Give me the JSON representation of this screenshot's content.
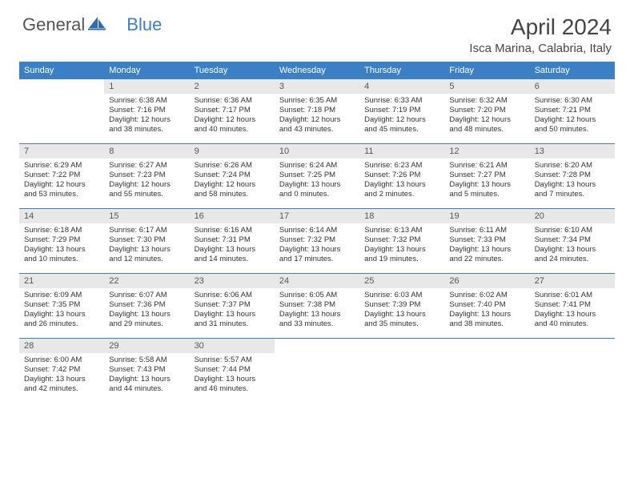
{
  "logo": {
    "general": "General",
    "blue": "Blue"
  },
  "title": "April 2024",
  "location": "Isca Marina, Calabria, Italy",
  "colors": {
    "header_bg": "#3b7fc4",
    "header_text": "#ffffff",
    "daynum_bg": "#e8e8e8",
    "text": "#333333",
    "divider": "#3b7fc4"
  },
  "weekdays": [
    "Sunday",
    "Monday",
    "Tuesday",
    "Wednesday",
    "Thursday",
    "Friday",
    "Saturday"
  ],
  "weeks": [
    [
      null,
      {
        "n": "1",
        "sunrise": "6:38 AM",
        "sunset": "7:16 PM",
        "dl": "12 hours and 38 minutes."
      },
      {
        "n": "2",
        "sunrise": "6:36 AM",
        "sunset": "7:17 PM",
        "dl": "12 hours and 40 minutes."
      },
      {
        "n": "3",
        "sunrise": "6:35 AM",
        "sunset": "7:18 PM",
        "dl": "12 hours and 43 minutes."
      },
      {
        "n": "4",
        "sunrise": "6:33 AM",
        "sunset": "7:19 PM",
        "dl": "12 hours and 45 minutes."
      },
      {
        "n": "5",
        "sunrise": "6:32 AM",
        "sunset": "7:20 PM",
        "dl": "12 hours and 48 minutes."
      },
      {
        "n": "6",
        "sunrise": "6:30 AM",
        "sunset": "7:21 PM",
        "dl": "12 hours and 50 minutes."
      }
    ],
    [
      {
        "n": "7",
        "sunrise": "6:29 AM",
        "sunset": "7:22 PM",
        "dl": "12 hours and 53 minutes."
      },
      {
        "n": "8",
        "sunrise": "6:27 AM",
        "sunset": "7:23 PM",
        "dl": "12 hours and 55 minutes."
      },
      {
        "n": "9",
        "sunrise": "6:26 AM",
        "sunset": "7:24 PM",
        "dl": "12 hours and 58 minutes."
      },
      {
        "n": "10",
        "sunrise": "6:24 AM",
        "sunset": "7:25 PM",
        "dl": "13 hours and 0 minutes."
      },
      {
        "n": "11",
        "sunrise": "6:23 AM",
        "sunset": "7:26 PM",
        "dl": "13 hours and 2 minutes."
      },
      {
        "n": "12",
        "sunrise": "6:21 AM",
        "sunset": "7:27 PM",
        "dl": "13 hours and 5 minutes."
      },
      {
        "n": "13",
        "sunrise": "6:20 AM",
        "sunset": "7:28 PM",
        "dl": "13 hours and 7 minutes."
      }
    ],
    [
      {
        "n": "14",
        "sunrise": "6:18 AM",
        "sunset": "7:29 PM",
        "dl": "13 hours and 10 minutes."
      },
      {
        "n": "15",
        "sunrise": "6:17 AM",
        "sunset": "7:30 PM",
        "dl": "13 hours and 12 minutes."
      },
      {
        "n": "16",
        "sunrise": "6:16 AM",
        "sunset": "7:31 PM",
        "dl": "13 hours and 14 minutes."
      },
      {
        "n": "17",
        "sunrise": "6:14 AM",
        "sunset": "7:32 PM",
        "dl": "13 hours and 17 minutes."
      },
      {
        "n": "18",
        "sunrise": "6:13 AM",
        "sunset": "7:32 PM",
        "dl": "13 hours and 19 minutes."
      },
      {
        "n": "19",
        "sunrise": "6:11 AM",
        "sunset": "7:33 PM",
        "dl": "13 hours and 22 minutes."
      },
      {
        "n": "20",
        "sunrise": "6:10 AM",
        "sunset": "7:34 PM",
        "dl": "13 hours and 24 minutes."
      }
    ],
    [
      {
        "n": "21",
        "sunrise": "6:09 AM",
        "sunset": "7:35 PM",
        "dl": "13 hours and 26 minutes."
      },
      {
        "n": "22",
        "sunrise": "6:07 AM",
        "sunset": "7:36 PM",
        "dl": "13 hours and 29 minutes."
      },
      {
        "n": "23",
        "sunrise": "6:06 AM",
        "sunset": "7:37 PM",
        "dl": "13 hours and 31 minutes."
      },
      {
        "n": "24",
        "sunrise": "6:05 AM",
        "sunset": "7:38 PM",
        "dl": "13 hours and 33 minutes."
      },
      {
        "n": "25",
        "sunrise": "6:03 AM",
        "sunset": "7:39 PM",
        "dl": "13 hours and 35 minutes."
      },
      {
        "n": "26",
        "sunrise": "6:02 AM",
        "sunset": "7:40 PM",
        "dl": "13 hours and 38 minutes."
      },
      {
        "n": "27",
        "sunrise": "6:01 AM",
        "sunset": "7:41 PM",
        "dl": "13 hours and 40 minutes."
      }
    ],
    [
      {
        "n": "28",
        "sunrise": "6:00 AM",
        "sunset": "7:42 PM",
        "dl": "13 hours and 42 minutes."
      },
      {
        "n": "29",
        "sunrise": "5:58 AM",
        "sunset": "7:43 PM",
        "dl": "13 hours and 44 minutes."
      },
      {
        "n": "30",
        "sunrise": "5:57 AM",
        "sunset": "7:44 PM",
        "dl": "13 hours and 46 minutes."
      },
      null,
      null,
      null,
      null
    ]
  ],
  "labels": {
    "sunrise": "Sunrise:",
    "sunset": "Sunset:",
    "daylight": "Daylight:"
  }
}
